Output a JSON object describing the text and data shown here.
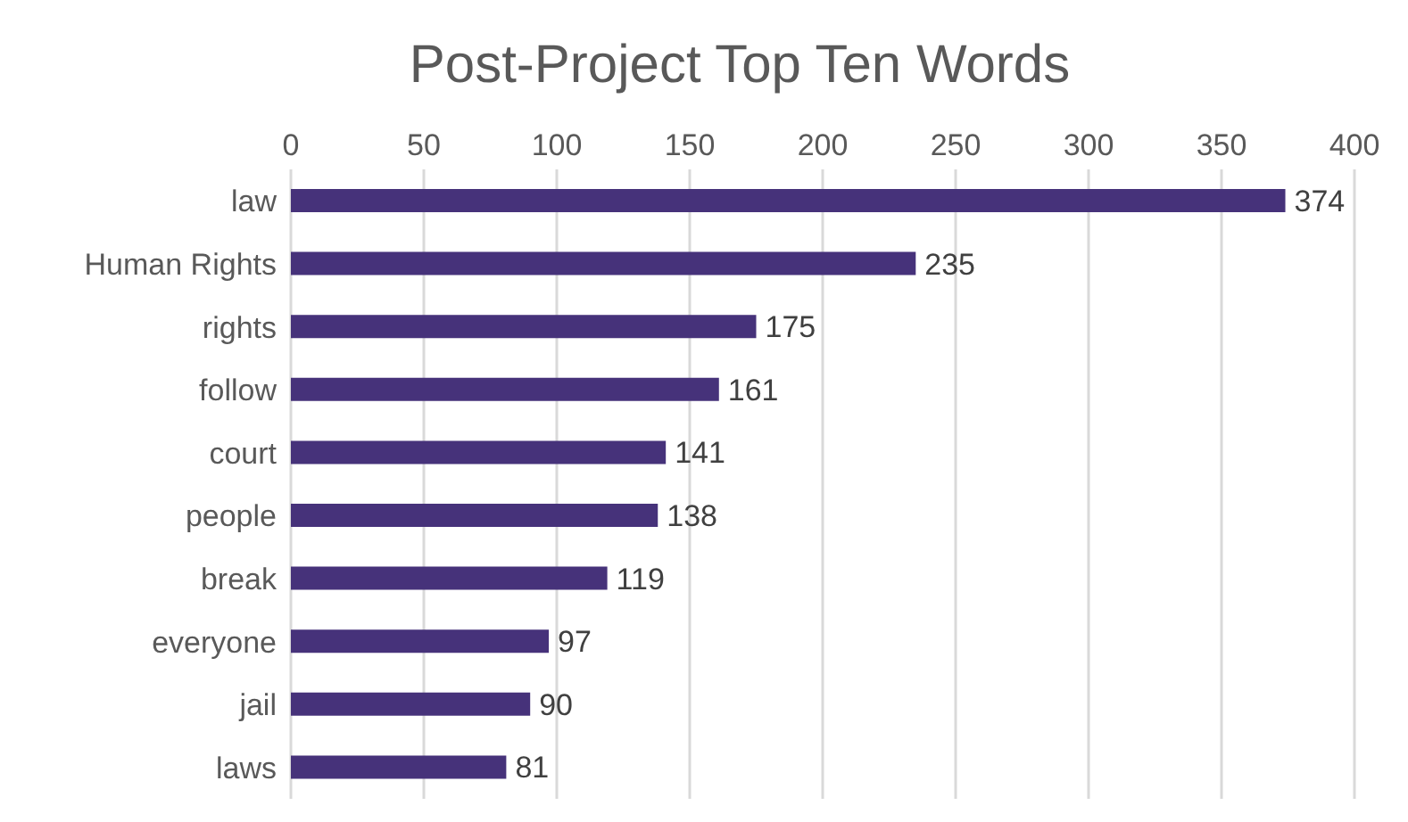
{
  "chart_data": {
    "type": "bar",
    "title": "Post-Project Top Ten Words",
    "orientation": "horizontal",
    "categories": [
      "law",
      "Human Rights",
      "rights",
      "follow",
      "court",
      "people",
      "break",
      "everyone",
      "jail",
      "laws"
    ],
    "values": [
      374,
      235,
      175,
      161,
      141,
      138,
      119,
      97,
      90,
      81
    ],
    "color": "#46327a",
    "xlim": [
      0,
      400
    ],
    "xticks": [
      0,
      50,
      100,
      150,
      200,
      250,
      300,
      350,
      400
    ],
    "grid": "x",
    "data_labels": true
  }
}
